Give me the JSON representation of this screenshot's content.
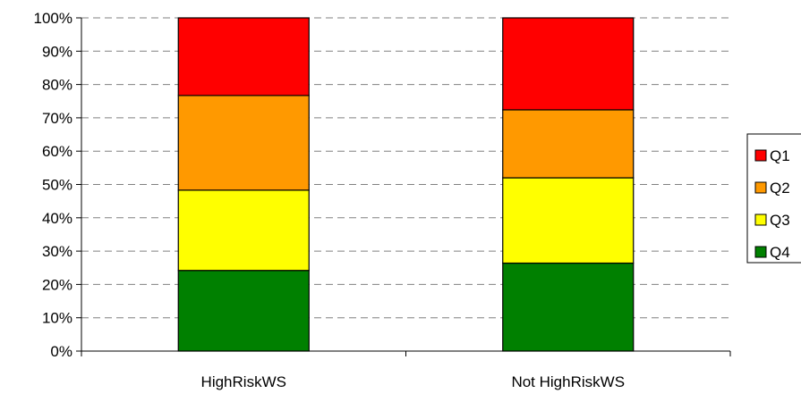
{
  "chart_data": {
    "type": "bar",
    "stacked": true,
    "percent_stacked": true,
    "categories": [
      "HighRiskWS",
      "Not HighRiskWS"
    ],
    "series": [
      {
        "name": "Q4",
        "color": "#008000",
        "values": [
          24.2,
          26.4
        ]
      },
      {
        "name": "Q3",
        "color": "#ffff00",
        "values": [
          24.1,
          25.6
        ]
      },
      {
        "name": "Q2",
        "color": "#ff9900",
        "values": [
          28.4,
          20.4
        ]
      },
      {
        "name": "Q1",
        "color": "#ff0000",
        "values": [
          23.3,
          27.6
        ]
      }
    ],
    "legend_order": [
      "Q1",
      "Q2",
      "Q3",
      "Q4"
    ],
    "y_ticks": [
      "0%",
      "10%",
      "20%",
      "30%",
      "40%",
      "50%",
      "60%",
      "70%",
      "80%",
      "90%",
      "100%"
    ],
    "ylim": [
      0,
      100
    ],
    "grid": true,
    "grid_style": "dashed",
    "legend_position": "right",
    "title": "",
    "xlabel": "",
    "ylabel": ""
  }
}
